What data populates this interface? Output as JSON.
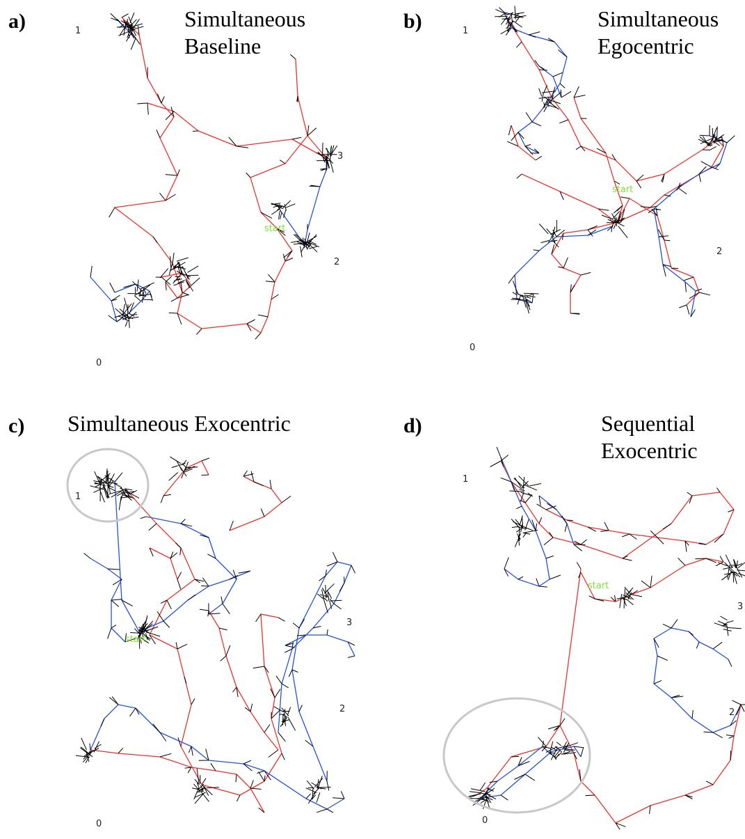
{
  "colors": {
    "robot_a": "#e8322a",
    "robot_b": "#2451d6",
    "scan": "#000000",
    "start": "#7fe03a",
    "highlight": "#c8c8c8"
  },
  "panels": [
    {
      "letter": "a)",
      "title_lines": [
        "Simultaneous",
        "Baseline"
      ],
      "landmarks": [
        "1",
        "3",
        "2",
        "0"
      ],
      "start_label": "start"
    },
    {
      "letter": "b)",
      "title_lines": [
        "Simultaneous",
        "Egocentric"
      ],
      "landmarks": [
        "1",
        "2",
        "0"
      ],
      "start_label": "start"
    },
    {
      "letter": "c)",
      "title_lines": [
        "Simultaneous Exocentric"
      ],
      "landmarks": [
        "1",
        "3",
        "2",
        "0"
      ],
      "start_label": "start"
    },
    {
      "letter": "d)",
      "title_lines": [
        "Sequential",
        "Exocentric"
      ],
      "landmarks": [
        "1",
        "3",
        "2",
        "0"
      ],
      "start_label": "start"
    }
  ]
}
